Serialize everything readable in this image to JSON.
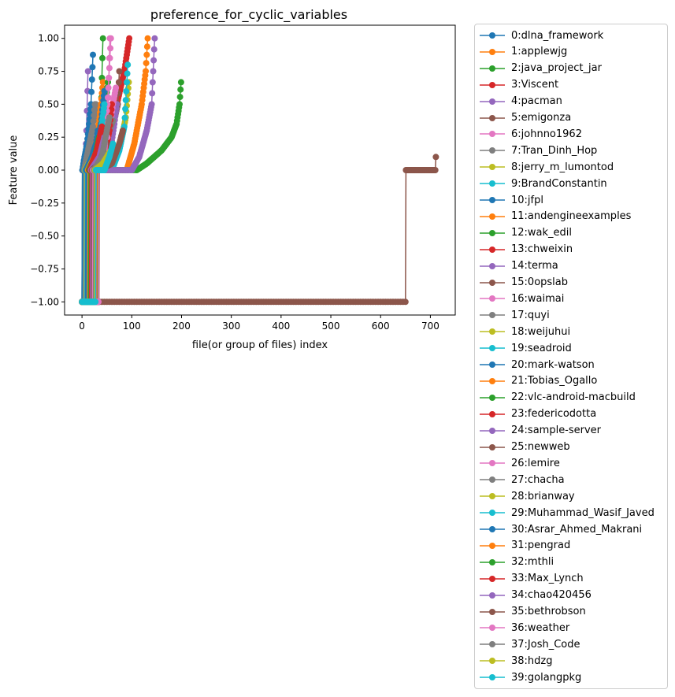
{
  "chart_data": {
    "type": "line",
    "title": "preference_for_cyclic_variables",
    "xlabel": "file(or group of files) index",
    "ylabel": "Feature value",
    "xlim": [
      -35,
      750
    ],
    "ylim": [
      -1.1,
      1.1
    ],
    "xticks": [
      0,
      100,
      200,
      300,
      400,
      500,
      600,
      700
    ],
    "yticks": [
      -1.0,
      -0.75,
      -0.5,
      -0.25,
      0.0,
      0.25,
      0.5,
      0.75,
      1.0
    ],
    "ytick_labels": [
      "−1.00",
      "−0.75",
      "−0.50",
      "−0.25",
      "0.00",
      "0.25",
      "0.50",
      "0.75",
      "1.00"
    ],
    "legend_position": "outside-right",
    "series": [
      {
        "name": "0:dlna_framework",
        "color": "#1f77b4",
        "points": [
          [
            0,
            -1
          ],
          [
            1,
            0
          ],
          [
            3,
            0.05
          ],
          [
            5,
            0.1
          ],
          [
            8,
            0.15
          ]
        ]
      },
      {
        "name": "1:applewjg",
        "color": "#ff7f0e",
        "points": [
          [
            0,
            -1
          ],
          [
            6,
            -1
          ],
          [
            7,
            0
          ],
          [
            12,
            0.05
          ],
          [
            16,
            0.1
          ]
        ]
      },
      {
        "name": "2:java_project_jar",
        "color": "#2ca02c",
        "points": [
          [
            0,
            -1
          ],
          [
            3,
            -1
          ],
          [
            4,
            0
          ],
          [
            30,
            0
          ],
          [
            36,
            0.1
          ],
          [
            42,
            1.0
          ]
        ]
      },
      {
        "name": "3:Viscent",
        "color": "#d62728",
        "points": [
          [
            0,
            -1
          ],
          [
            10,
            -1
          ],
          [
            11,
            0
          ],
          [
            40,
            0
          ],
          [
            70,
            0.5
          ],
          [
            85,
            0.75
          ],
          [
            95,
            1.0
          ]
        ]
      },
      {
        "name": "4:pacman",
        "color": "#9467bd",
        "points": [
          [
            0,
            -1
          ],
          [
            5,
            -1
          ],
          [
            6,
            0
          ],
          [
            9,
            0.3
          ],
          [
            12,
            0.75
          ]
        ]
      },
      {
        "name": "5:emigonza",
        "color": "#8c564b",
        "points": [
          [
            0,
            -1
          ],
          [
            3,
            -1
          ],
          [
            4,
            0
          ],
          [
            40,
            0.1
          ],
          [
            60,
            0.3
          ],
          [
            72,
            0.5
          ],
          [
            75,
            0.75
          ]
        ]
      },
      {
        "name": "6:johnno1962",
        "color": "#e377c2",
        "points": [
          [
            0,
            -1
          ],
          [
            4,
            -1
          ],
          [
            5,
            0
          ],
          [
            12,
            0.05
          ]
        ]
      },
      {
        "name": "7:Tran_Dinh_Hop",
        "color": "#7f7f7f",
        "points": [
          [
            0,
            -1
          ],
          [
            1,
            0
          ],
          [
            15,
            0.3
          ],
          [
            25,
            0.4
          ],
          [
            28,
            0.5
          ]
        ]
      },
      {
        "name": "8:jerry_m_lumontod",
        "color": "#bcbd22",
        "points": [
          [
            0,
            -1
          ],
          [
            2,
            -1
          ],
          [
            3,
            0
          ],
          [
            10,
            0.05
          ]
        ]
      },
      {
        "name": "9:BrandConstantin",
        "color": "#17becf",
        "points": [
          [
            0,
            -1
          ],
          [
            2,
            -1
          ],
          [
            3,
            0
          ],
          [
            10,
            0.1
          ],
          [
            20,
            0.2
          ]
        ]
      },
      {
        "name": "10:jfpl",
        "color": "#1f77b4",
        "points": [
          [
            0,
            -1
          ],
          [
            1,
            0
          ],
          [
            10,
            0.2
          ],
          [
            18,
            0.5
          ],
          [
            22,
            0.875
          ]
        ]
      },
      {
        "name": "11:andengineexamples",
        "color": "#ff7f0e",
        "points": [
          [
            0,
            -1
          ],
          [
            8,
            -1
          ],
          [
            9,
            0
          ],
          [
            20,
            0.1
          ],
          [
            30,
            0.25
          ],
          [
            38,
            0.5
          ],
          [
            42,
            0.667
          ]
        ]
      },
      {
        "name": "12:wak_edil",
        "color": "#2ca02c",
        "points": [
          [
            0,
            -1
          ],
          [
            12,
            -1
          ],
          [
            13,
            0
          ],
          [
            30,
            0.1
          ],
          [
            45,
            0.4
          ],
          [
            52,
            0.667
          ]
        ]
      },
      {
        "name": "13:chweixin",
        "color": "#d62728",
        "points": [
          [
            0,
            -1
          ],
          [
            14,
            -1
          ],
          [
            15,
            0
          ],
          [
            30,
            0.1
          ],
          [
            42,
            0.33
          ],
          [
            48,
            0.5
          ]
        ]
      },
      {
        "name": "14:terma",
        "color": "#9467bd",
        "points": [
          [
            0,
            -1
          ],
          [
            16,
            -1
          ],
          [
            17,
            0
          ],
          [
            50,
            0
          ],
          [
            55,
            0.1
          ],
          [
            65,
            0.35
          ],
          [
            70,
            0.5
          ]
        ]
      },
      {
        "name": "15:0opslab",
        "color": "#8c564b",
        "points": [
          [
            0,
            -1
          ],
          [
            650,
            -1
          ],
          [
            651,
            0
          ],
          [
            710,
            0
          ],
          [
            711,
            0.1
          ]
        ]
      },
      {
        "name": "16:waimai",
        "color": "#e377c2",
        "points": [
          [
            0,
            -1
          ],
          [
            20,
            -1
          ],
          [
            21,
            0
          ],
          [
            45,
            0.1
          ],
          [
            55,
            0.3
          ],
          [
            62,
            0.5
          ],
          [
            68,
            0.625
          ]
        ]
      },
      {
        "name": "17:quyi",
        "color": "#7f7f7f",
        "points": [
          [
            0,
            -1
          ],
          [
            18,
            -1
          ],
          [
            19,
            0
          ],
          [
            40,
            0.15
          ],
          [
            55,
            0.3
          ],
          [
            62,
            0.375
          ]
        ]
      },
      {
        "name": "18:weijuhui",
        "color": "#bcbd22",
        "points": [
          [
            0,
            -1
          ],
          [
            22,
            -1
          ],
          [
            23,
            0
          ],
          [
            60,
            0
          ],
          [
            70,
            0.15
          ],
          [
            80,
            0.25
          ],
          [
            88,
            0.4
          ],
          [
            94,
            0.667
          ]
        ]
      },
      {
        "name": "19:seadroid",
        "color": "#17becf",
        "points": [
          [
            0,
            -1
          ],
          [
            24,
            -1
          ],
          [
            25,
            0
          ],
          [
            60,
            0
          ],
          [
            75,
            0.15
          ],
          [
            85,
            0.33
          ],
          [
            92,
            0.8
          ]
        ]
      },
      {
        "name": "20:mark-watson",
        "color": "#1f77b4",
        "points": [
          [
            0,
            -1
          ],
          [
            9,
            -1
          ],
          [
            10,
            0
          ],
          [
            25,
            0.1
          ],
          [
            38,
            0.35
          ],
          [
            45,
            0.6
          ]
        ]
      },
      {
        "name": "21:Tobias_Ogallo",
        "color": "#ff7f0e",
        "points": [
          [
            0,
            -1
          ],
          [
            30,
            -1
          ],
          [
            31,
            0
          ],
          [
            90,
            0
          ],
          [
            105,
            0.2
          ],
          [
            120,
            0.5
          ],
          [
            128,
            0.75
          ],
          [
            130,
            0.875
          ],
          [
            132,
            1.0
          ]
        ]
      },
      {
        "name": "22:vlc-android-macbuild",
        "color": "#2ca02c",
        "points": [
          [
            0,
            -1
          ],
          [
            32,
            -1
          ],
          [
            33,
            0
          ],
          [
            110,
            0
          ],
          [
            130,
            0.05
          ],
          [
            160,
            0.15
          ],
          [
            180,
            0.25
          ],
          [
            190,
            0.35
          ],
          [
            196,
            0.5
          ],
          [
            199,
            0.667
          ]
        ]
      },
      {
        "name": "23:federicodotta",
        "color": "#d62728",
        "points": [
          [
            0,
            -1
          ],
          [
            26,
            -1
          ],
          [
            27,
            0
          ],
          [
            45,
            0.1
          ],
          [
            55,
            0.3
          ],
          [
            60,
            0.5
          ]
        ]
      },
      {
        "name": "24:sample-server",
        "color": "#9467bd",
        "points": [
          [
            0,
            -1
          ],
          [
            28,
            -1
          ],
          [
            29,
            0
          ],
          [
            100,
            0
          ],
          [
            115,
            0.1
          ],
          [
            130,
            0.3
          ],
          [
            140,
            0.5
          ],
          [
            143,
            0.75
          ],
          [
            146,
            1.0
          ]
        ]
      },
      {
        "name": "25:newweb",
        "color": "#8c564b",
        "points": [
          [
            0,
            -1
          ],
          [
            34,
            -1
          ],
          [
            35,
            0
          ],
          [
            60,
            0.05
          ],
          [
            75,
            0.2
          ],
          [
            82,
            0.3
          ]
        ]
      },
      {
        "name": "26:lemire",
        "color": "#e377c2",
        "points": [
          [
            0,
            -1
          ],
          [
            33,
            -1
          ],
          [
            34,
            0
          ],
          [
            45,
            0.2
          ],
          [
            52,
            0.55
          ],
          [
            58,
            1.0
          ]
        ]
      },
      {
        "name": "27:chacha",
        "color": "#7f7f7f",
        "points": [
          [
            0,
            -1
          ],
          [
            3,
            -1
          ],
          [
            4,
            0
          ],
          [
            15,
            0.2
          ],
          [
            22,
            0.33
          ],
          [
            26,
            0.5
          ]
        ]
      },
      {
        "name": "28:brianway",
        "color": "#bcbd22",
        "points": [
          [
            0,
            -1
          ],
          [
            5,
            -1
          ],
          [
            6,
            0
          ],
          [
            20,
            0.1
          ],
          [
            28,
            0.2
          ]
        ]
      },
      {
        "name": "29:Muhammad_Wasif_Javed",
        "color": "#17becf",
        "points": [
          [
            0,
            -1
          ],
          [
            6,
            -1
          ],
          [
            7,
            0
          ],
          [
            25,
            0
          ],
          [
            35,
            0.2
          ],
          [
            45,
            0.5
          ]
        ]
      },
      {
        "name": "30:Asrar_Ahmed_Makrani",
        "color": "#1f77b4",
        "points": [
          [
            0,
            -1
          ],
          [
            7,
            -1
          ],
          [
            8,
            0
          ],
          [
            20,
            0.1
          ],
          [
            28,
            0.2
          ],
          [
            32,
            0.3
          ]
        ]
      },
      {
        "name": "31:pengrad",
        "color": "#ff7f0e",
        "points": [
          [
            0,
            -1
          ],
          [
            11,
            -1
          ],
          [
            12,
            0
          ],
          [
            25,
            0.1
          ],
          [
            35,
            0.2
          ]
        ]
      },
      {
        "name": "32:mthli",
        "color": "#2ca02c",
        "points": [
          [
            0,
            -1
          ],
          [
            13,
            -1
          ],
          [
            14,
            0
          ],
          [
            26,
            0.1
          ],
          [
            34,
            0.25
          ]
        ]
      },
      {
        "name": "33:Max_Lynch",
        "color": "#d62728",
        "points": [
          [
            0,
            -1
          ],
          [
            15,
            -1
          ],
          [
            16,
            0
          ],
          [
            30,
            0.15
          ],
          [
            40,
            0.33
          ]
        ]
      },
      {
        "name": "34:chao420456",
        "color": "#9467bd",
        "points": [
          [
            0,
            -1
          ],
          [
            17,
            -1
          ],
          [
            18,
            0
          ],
          [
            35,
            0.1
          ],
          [
            45,
            0.25
          ]
        ]
      },
      {
        "name": "35:bethrobson",
        "color": "#8c564b",
        "points": [
          [
            0,
            -1
          ],
          [
            19,
            -1
          ],
          [
            20,
            0
          ],
          [
            35,
            0.05
          ],
          [
            48,
            0.2
          ]
        ]
      },
      {
        "name": "36:weather",
        "color": "#e377c2",
        "points": [
          [
            0,
            -1
          ],
          [
            21,
            -1
          ],
          [
            22,
            0
          ],
          [
            40,
            0
          ],
          [
            50,
            0.1
          ],
          [
            56,
            1.0
          ]
        ]
      },
      {
        "name": "37:Josh_Code",
        "color": "#7f7f7f",
        "points": [
          [
            0,
            -1
          ],
          [
            23,
            -1
          ],
          [
            24,
            0
          ],
          [
            40,
            0.1
          ],
          [
            55,
            0.4
          ]
        ]
      },
      {
        "name": "38:hdzg",
        "color": "#bcbd22",
        "points": [
          [
            0,
            -1
          ],
          [
            25,
            -1
          ],
          [
            26,
            0
          ],
          [
            42,
            0.05
          ],
          [
            58,
            0.15
          ]
        ]
      },
      {
        "name": "39:golangpkg",
        "color": "#17becf",
        "points": [
          [
            0,
            -1
          ],
          [
            27,
            -1
          ],
          [
            28,
            0
          ],
          [
            45,
            0
          ],
          [
            55,
            0.1
          ],
          [
            62,
            0.2
          ]
        ]
      }
    ]
  }
}
